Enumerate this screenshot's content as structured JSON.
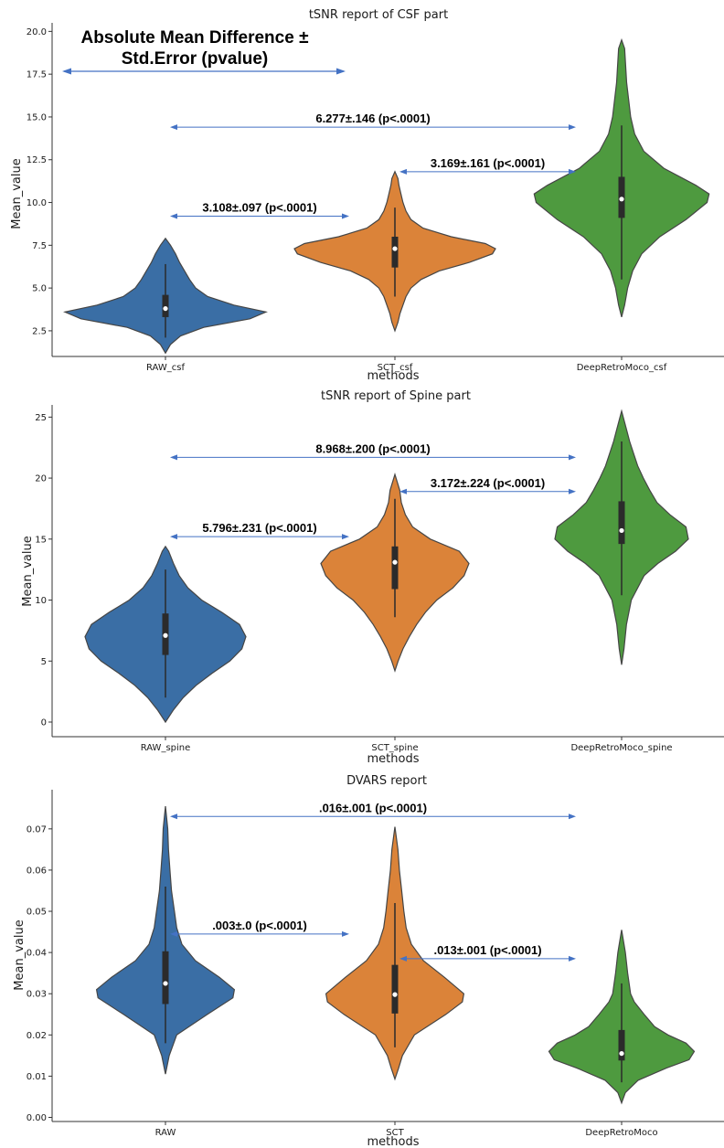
{
  "figure_annotation": {
    "line1": "Absolute Mean Difference ±",
    "line2": "Std.Error (pvalue)"
  },
  "colors": {
    "blue": "#3a6ea5",
    "orange": "#db8339",
    "green": "#4e9a3f",
    "arrow": "#4472c4",
    "violin_edge": "#454545"
  },
  "chart_data": [
    {
      "type": "violin",
      "title": "tSNR report of CSF part",
      "xlabel": "methods",
      "ylabel": "Mean_value",
      "ylim": [
        1.0,
        20.5
      ],
      "yticks": [
        2.5,
        5.0,
        7.5,
        10.0,
        12.5,
        15.0,
        17.5,
        20.0
      ],
      "ytick_labels": [
        "2.5",
        "5.0",
        "7.5",
        "10.0",
        "12.5",
        "15.0",
        "17.5",
        "20.0"
      ],
      "categories": [
        "RAW_csf",
        "SCT_csf",
        "DeepRetroMoco_csf"
      ],
      "violins": [
        {
          "color": "blue",
          "min": 1.2,
          "max": 7.9,
          "q1": 3.3,
          "median": 3.8,
          "q3": 4.6,
          "whisker_low": 2.1,
          "whisker_high": 6.4,
          "profile": [
            [
              1.2,
              0
            ],
            [
              1.7,
              0.05
            ],
            [
              2.2,
              0.15
            ],
            [
              2.7,
              0.38
            ],
            [
              3.2,
              0.84
            ],
            [
              3.6,
              1.0
            ],
            [
              4.0,
              0.68
            ],
            [
              4.5,
              0.42
            ],
            [
              5.0,
              0.3
            ],
            [
              5.5,
              0.24
            ],
            [
              6.0,
              0.19
            ],
            [
              6.5,
              0.14
            ],
            [
              7.0,
              0.1
            ],
            [
              7.5,
              0.05
            ],
            [
              7.9,
              0
            ]
          ]
        },
        {
          "color": "orange",
          "min": 2.5,
          "max": 11.8,
          "q1": 6.2,
          "median": 7.3,
          "q3": 8.0,
          "whisker_low": 4.5,
          "whisker_high": 9.7,
          "profile": [
            [
              2.5,
              0
            ],
            [
              3.0,
              0.03
            ],
            [
              3.5,
              0.05
            ],
            [
              4.0,
              0.08
            ],
            [
              4.5,
              0.11
            ],
            [
              5.0,
              0.16
            ],
            [
              5.5,
              0.26
            ],
            [
              6.0,
              0.44
            ],
            [
              6.5,
              0.74
            ],
            [
              7.0,
              0.97
            ],
            [
              7.3,
              1.0
            ],
            [
              7.6,
              0.9
            ],
            [
              8.0,
              0.56
            ],
            [
              8.5,
              0.28
            ],
            [
              9.0,
              0.16
            ],
            [
              9.5,
              0.11
            ],
            [
              10.0,
              0.08
            ],
            [
              10.5,
              0.06
            ],
            [
              11.0,
              0.04
            ],
            [
              11.4,
              0.03
            ],
            [
              11.8,
              0
            ]
          ]
        },
        {
          "color": "green",
          "min": 3.3,
          "max": 19.5,
          "q1": 9.1,
          "median": 10.2,
          "q3": 11.5,
          "whisker_low": 5.5,
          "whisker_high": 14.5,
          "profile": [
            [
              3.3,
              0
            ],
            [
              4.0,
              0.03
            ],
            [
              5.0,
              0.06
            ],
            [
              6.0,
              0.11
            ],
            [
              7.0,
              0.2
            ],
            [
              8.0,
              0.38
            ],
            [
              9.0,
              0.64
            ],
            [
              10.0,
              0.85
            ],
            [
              10.5,
              0.87
            ],
            [
              11.0,
              0.74
            ],
            [
              12.0,
              0.42
            ],
            [
              13.0,
              0.22
            ],
            [
              14.0,
              0.13
            ],
            [
              15.0,
              0.09
            ],
            [
              16.0,
              0.07
            ],
            [
              17.0,
              0.05
            ],
            [
              18.0,
              0.04
            ],
            [
              19.0,
              0.03
            ],
            [
              19.5,
              0
            ]
          ]
        }
      ],
      "annotations": [
        {
          "text": "6.277±.146 (p<.0001)",
          "from": 0,
          "to": 2,
          "y": 14.4
        },
        {
          "text": "3.169±.161 (p<.0001)",
          "from": 1,
          "to": 2,
          "y": 11.8
        },
        {
          "text": "3.108±.097 (p<.0001)",
          "from": 0,
          "to": 1,
          "y": 9.2
        }
      ]
    },
    {
      "type": "violin",
      "title": "tSNR report of Spine part",
      "xlabel": "methods",
      "ylabel": "Mean_value",
      "ylim": [
        -1.2,
        26.0
      ],
      "yticks": [
        0,
        5,
        10,
        15,
        20,
        25
      ],
      "ytick_labels": [
        "0",
        "5",
        "10",
        "15",
        "20",
        "25"
      ],
      "categories": [
        "RAW_spine",
        "SCT_spine",
        "DeepRetroMoco_spine"
      ],
      "violins": [
        {
          "color": "blue",
          "min": 0.0,
          "max": 14.4,
          "q1": 5.5,
          "median": 7.1,
          "q3": 8.9,
          "whisker_low": 2.0,
          "whisker_high": 12.5,
          "profile": [
            [
              0.0,
              0
            ],
            [
              1.0,
              0.1
            ],
            [
              2.0,
              0.22
            ],
            [
              3.0,
              0.38
            ],
            [
              4.0,
              0.58
            ],
            [
              5.0,
              0.8
            ],
            [
              6.0,
              0.95
            ],
            [
              7.0,
              1.0
            ],
            [
              8.0,
              0.92
            ],
            [
              9.0,
              0.7
            ],
            [
              10.0,
              0.45
            ],
            [
              11.0,
              0.28
            ],
            [
              12.0,
              0.17
            ],
            [
              13.0,
              0.1
            ],
            [
              14.0,
              0.04
            ],
            [
              14.4,
              0
            ]
          ]
        },
        {
          "color": "orange",
          "min": 4.2,
          "max": 20.3,
          "q1": 10.9,
          "median": 13.1,
          "q3": 14.4,
          "whisker_low": 8.6,
          "whisker_high": 18.3,
          "profile": [
            [
              4.2,
              0
            ],
            [
              5.0,
              0.04
            ],
            [
              6.0,
              0.1
            ],
            [
              7.0,
              0.18
            ],
            [
              8.0,
              0.27
            ],
            [
              9.0,
              0.38
            ],
            [
              10.0,
              0.52
            ],
            [
              11.0,
              0.72
            ],
            [
              12.0,
              0.86
            ],
            [
              13.0,
              0.92
            ],
            [
              14.0,
              0.8
            ],
            [
              15.0,
              0.44
            ],
            [
              16.0,
              0.22
            ],
            [
              17.0,
              0.13
            ],
            [
              18.0,
              0.08
            ],
            [
              19.0,
              0.06
            ],
            [
              20.3,
              0
            ]
          ]
        },
        {
          "color": "green",
          "min": 4.7,
          "max": 25.5,
          "q1": 14.6,
          "median": 15.7,
          "q3": 18.1,
          "whisker_low": 10.4,
          "whisker_high": 23.0,
          "profile": [
            [
              4.7,
              0
            ],
            [
              6.0,
              0.03
            ],
            [
              8.0,
              0.06
            ],
            [
              10.0,
              0.12
            ],
            [
              12.0,
              0.28
            ],
            [
              13.0,
              0.45
            ],
            [
              14.0,
              0.67
            ],
            [
              15.0,
              0.83
            ],
            [
              16.0,
              0.8
            ],
            [
              17.0,
              0.6
            ],
            [
              18.0,
              0.44
            ],
            [
              19.0,
              0.35
            ],
            [
              20.0,
              0.27
            ],
            [
              21.0,
              0.2
            ],
            [
              22.0,
              0.15
            ],
            [
              23.0,
              0.1
            ],
            [
              24.0,
              0.06
            ],
            [
              25.5,
              0
            ]
          ]
        }
      ],
      "annotations": [
        {
          "text": "8.968±.200 (p<.0001)",
          "from": 0,
          "to": 2,
          "y": 21.7
        },
        {
          "text": "3.172±.224 (p<.0001)",
          "from": 1,
          "to": 2,
          "y": 18.9
        },
        {
          "text": "5.796±.231 (p<.0001)",
          "from": 0,
          "to": 1,
          "y": 15.2
        }
      ]
    },
    {
      "type": "violin",
      "title": "DVARS report",
      "xlabel": "methods",
      "ylabel": "Mean_value",
      "ylim": [
        -0.001,
        0.0795
      ],
      "yticks": [
        0.0,
        0.01,
        0.02,
        0.03,
        0.04,
        0.05,
        0.06,
        0.07
      ],
      "ytick_labels": [
        "0.00",
        "0.01",
        "0.02",
        "0.03",
        "0.04",
        "0.05",
        "0.06",
        "0.07"
      ],
      "categories": [
        "RAW",
        "SCT",
        "DeepRetroMoco"
      ],
      "violins": [
        {
          "color": "blue",
          "min": 0.0105,
          "max": 0.0755,
          "q1": 0.0275,
          "median": 0.0325,
          "q3": 0.0403,
          "whisker_low": 0.018,
          "whisker_high": 0.056,
          "profile": [
            [
              0.0105,
              0
            ],
            [
              0.015,
              0.05
            ],
            [
              0.02,
              0.15
            ],
            [
              0.025,
              0.56
            ],
            [
              0.029,
              0.9
            ],
            [
              0.031,
              0.92
            ],
            [
              0.034,
              0.72
            ],
            [
              0.038,
              0.4
            ],
            [
              0.042,
              0.22
            ],
            [
              0.046,
              0.15
            ],
            [
              0.05,
              0.12
            ],
            [
              0.055,
              0.08
            ],
            [
              0.06,
              0.06
            ],
            [
              0.065,
              0.04
            ],
            [
              0.07,
              0.03
            ],
            [
              0.0755,
              0
            ]
          ]
        },
        {
          "color": "orange",
          "min": 0.0093,
          "max": 0.0705,
          "q1": 0.0252,
          "median": 0.0298,
          "q3": 0.037,
          "whisker_low": 0.017,
          "whisker_high": 0.052,
          "profile": [
            [
              0.0093,
              0
            ],
            [
              0.012,
              0.05
            ],
            [
              0.015,
              0.1
            ],
            [
              0.02,
              0.26
            ],
            [
              0.025,
              0.68
            ],
            [
              0.028,
              0.9
            ],
            [
              0.03,
              0.92
            ],
            [
              0.034,
              0.66
            ],
            [
              0.038,
              0.38
            ],
            [
              0.042,
              0.22
            ],
            [
              0.046,
              0.15
            ],
            [
              0.05,
              0.12
            ],
            [
              0.055,
              0.09
            ],
            [
              0.06,
              0.06
            ],
            [
              0.065,
              0.04
            ],
            [
              0.0705,
              0
            ]
          ]
        },
        {
          "color": "green",
          "min": 0.0035,
          "max": 0.0455,
          "q1": 0.0138,
          "median": 0.0155,
          "q3": 0.0212,
          "whisker_low": 0.0085,
          "whisker_high": 0.0325,
          "profile": [
            [
              0.0035,
              0
            ],
            [
              0.006,
              0.05
            ],
            [
              0.009,
              0.22
            ],
            [
              0.012,
              0.6
            ],
            [
              0.014,
              0.9
            ],
            [
              0.016,
              0.97
            ],
            [
              0.018,
              0.86
            ],
            [
              0.02,
              0.62
            ],
            [
              0.022,
              0.44
            ],
            [
              0.025,
              0.3
            ],
            [
              0.028,
              0.17
            ],
            [
              0.03,
              0.12
            ],
            [
              0.035,
              0.08
            ],
            [
              0.04,
              0.05
            ],
            [
              0.0455,
              0
            ]
          ]
        }
      ],
      "annotations": [
        {
          "text": ".016±.001 (p<.0001)",
          "from": 0,
          "to": 2,
          "y": 0.073
        },
        {
          "text": ".003±.0 (p<.0001)",
          "from": 0,
          "to": 1,
          "y": 0.0445
        },
        {
          "text": ".013±.001 (p<.0001)",
          "from": 1,
          "to": 2,
          "y": 0.0385
        }
      ]
    }
  ]
}
